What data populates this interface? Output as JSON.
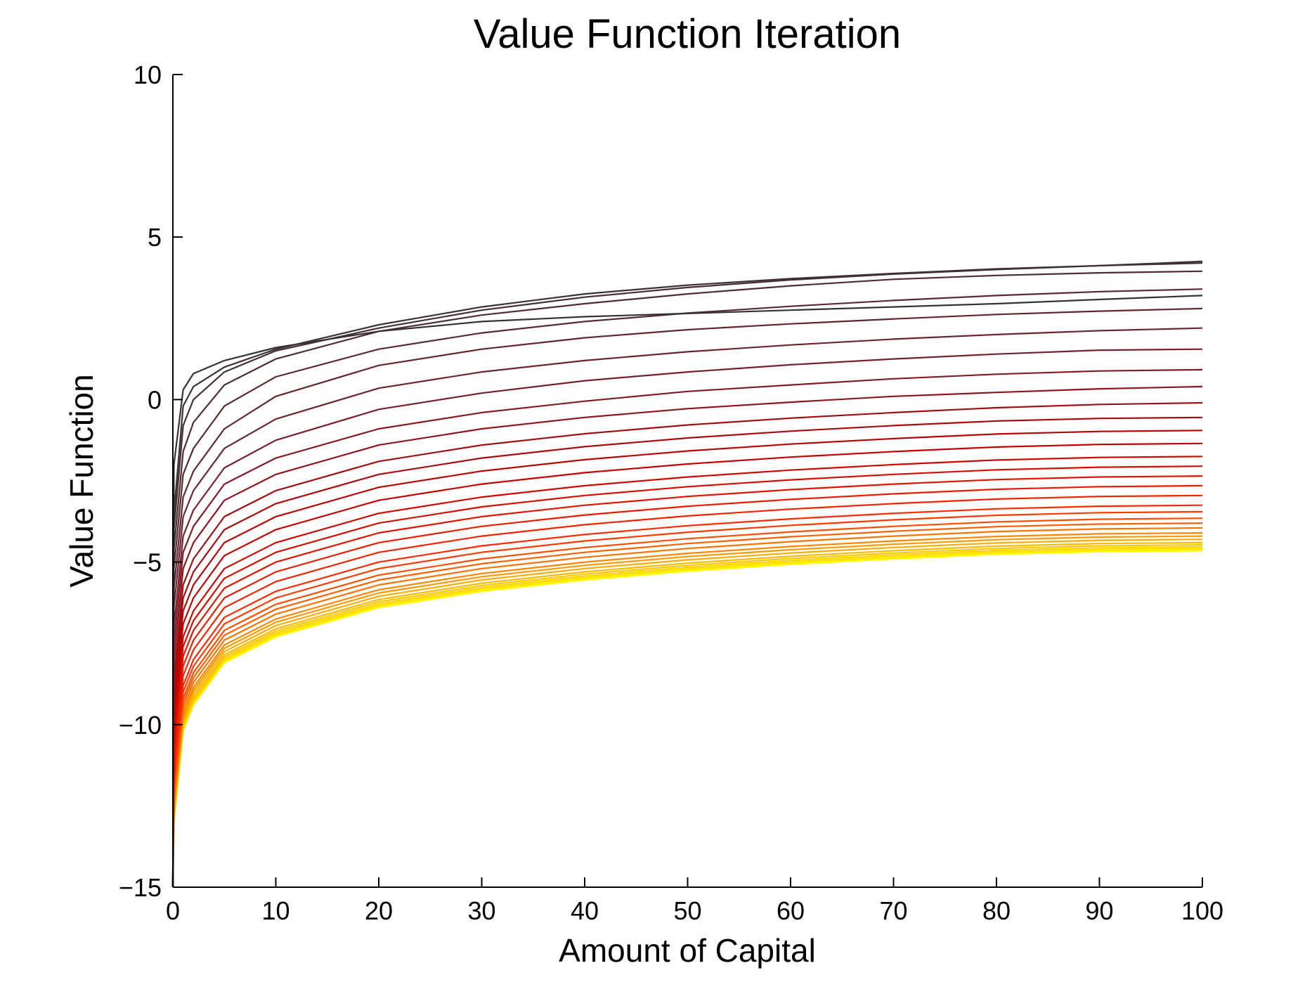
{
  "chart_data": {
    "type": "line",
    "title": "Value Function Iteration",
    "xlabel": "Amount of Capital",
    "ylabel": "Value Function",
    "xlim": [
      0,
      100
    ],
    "ylim": [
      -15,
      10
    ],
    "xticks": [
      0,
      10,
      20,
      30,
      40,
      50,
      60,
      70,
      80,
      90,
      100
    ],
    "yticks": [
      -15,
      -10,
      -5,
      0,
      5,
      10
    ],
    "xtick_labels": [
      "0",
      "10",
      "20",
      "30",
      "40",
      "50",
      "60",
      "70",
      "80",
      "90",
      "100"
    ],
    "ytick_labels": [
      "−15",
      "−10",
      "−5",
      "0",
      "5",
      "10"
    ],
    "grid": false,
    "colormap": [
      "#333333",
      "#6e2430",
      "#c00000",
      "#ff2a00",
      "#ffa500",
      "#ffff00"
    ],
    "x": [
      0.1,
      1,
      2,
      5,
      10,
      20,
      30,
      40,
      50,
      60,
      70,
      80,
      90,
      100
    ],
    "series": [
      {
        "values": [
          -2.0,
          0.3,
          0.8,
          1.2,
          1.6,
          2.1,
          2.4,
          2.55,
          2.65,
          2.75,
          2.85,
          2.95,
          3.08,
          3.2
        ]
      },
      {
        "values": [
          -3.5,
          -0.2,
          0.4,
          1.0,
          1.55,
          2.3,
          2.85,
          3.25,
          3.52,
          3.72,
          3.88,
          4.02,
          4.12,
          4.2
        ]
      },
      {
        "values": [
          -4.0,
          -0.8,
          0.0,
          0.85,
          1.5,
          2.2,
          2.75,
          3.15,
          3.45,
          3.68,
          3.86,
          4.0,
          4.12,
          4.25
        ]
      },
      {
        "values": [
          -4.6,
          -1.6,
          -0.7,
          0.45,
          1.25,
          2.1,
          2.6,
          2.95,
          3.25,
          3.5,
          3.7,
          3.82,
          3.9,
          3.95
        ]
      },
      {
        "values": [
          -5.2,
          -2.3,
          -1.5,
          -0.2,
          0.7,
          1.55,
          2.05,
          2.4,
          2.66,
          2.87,
          3.05,
          3.2,
          3.32,
          3.4
        ]
      },
      {
        "values": [
          -5.8,
          -3.0,
          -2.2,
          -0.9,
          0.1,
          1.05,
          1.55,
          1.9,
          2.15,
          2.33,
          2.48,
          2.62,
          2.72,
          2.8
        ]
      },
      {
        "values": [
          -6.4,
          -3.6,
          -2.8,
          -1.5,
          -0.6,
          0.35,
          0.85,
          1.2,
          1.47,
          1.68,
          1.86,
          2.0,
          2.12,
          2.2
        ]
      },
      {
        "values": [
          -7.0,
          -4.2,
          -3.4,
          -2.1,
          -1.25,
          -0.3,
          0.2,
          0.58,
          0.85,
          1.07,
          1.25,
          1.4,
          1.52,
          1.55
        ]
      },
      {
        "values": [
          -7.5,
          -4.7,
          -3.9,
          -2.6,
          -1.8,
          -0.9,
          -0.4,
          -0.05,
          0.25,
          0.45,
          0.64,
          0.78,
          0.88,
          0.92
        ]
      },
      {
        "values": [
          -8.0,
          -5.2,
          -4.4,
          -3.1,
          -2.3,
          -1.4,
          -0.9,
          -0.55,
          -0.28,
          -0.08,
          0.1,
          0.22,
          0.33,
          0.4
        ]
      },
      {
        "values": [
          -8.5,
          -5.7,
          -4.9,
          -3.6,
          -2.8,
          -1.9,
          -1.4,
          -1.05,
          -0.78,
          -0.57,
          -0.4,
          -0.25,
          -0.15,
          -0.1
        ]
      },
      {
        "values": [
          -8.9,
          -6.1,
          -5.3,
          -4.0,
          -3.2,
          -2.3,
          -1.8,
          -1.45,
          -1.18,
          -0.97,
          -0.8,
          -0.66,
          -0.58,
          -0.55
        ]
      },
      {
        "values": [
          -9.3,
          -6.5,
          -5.7,
          -4.4,
          -3.6,
          -2.7,
          -2.2,
          -1.85,
          -1.58,
          -1.37,
          -1.2,
          -1.06,
          -0.98,
          -0.95
        ]
      },
      {
        "values": [
          -9.7,
          -6.9,
          -6.1,
          -4.8,
          -4.0,
          -3.1,
          -2.6,
          -2.25,
          -1.98,
          -1.77,
          -1.6,
          -1.46,
          -1.38,
          -1.35
        ]
      },
      {
        "values": [
          -10.1,
          -7.3,
          -6.5,
          -5.2,
          -4.4,
          -3.5,
          -3.0,
          -2.65,
          -2.38,
          -2.17,
          -2.0,
          -1.86,
          -1.78,
          -1.75
        ]
      },
      {
        "values": [
          -10.4,
          -7.6,
          -6.8,
          -5.5,
          -4.7,
          -3.8,
          -3.3,
          -2.95,
          -2.68,
          -2.47,
          -2.3,
          -2.16,
          -2.08,
          -2.05
        ]
      },
      {
        "values": [
          -10.7,
          -7.9,
          -7.1,
          -5.8,
          -5.0,
          -4.1,
          -3.6,
          -3.25,
          -2.98,
          -2.77,
          -2.6,
          -2.46,
          -2.38,
          -2.35
        ]
      },
      {
        "values": [
          -11.0,
          -8.2,
          -7.4,
          -6.1,
          -5.3,
          -4.4,
          -3.9,
          -3.55,
          -3.28,
          -3.07,
          -2.9,
          -2.76,
          -2.68,
          -2.65
        ]
      },
      {
        "values": [
          -11.3,
          -8.5,
          -7.7,
          -6.4,
          -5.6,
          -4.7,
          -4.2,
          -3.85,
          -3.58,
          -3.37,
          -3.2,
          -3.06,
          -2.98,
          -2.95
        ]
      },
      {
        "values": [
          -11.6,
          -8.8,
          -8.0,
          -6.7,
          -5.9,
          -5.0,
          -4.5,
          -4.15,
          -3.88,
          -3.67,
          -3.5,
          -3.36,
          -3.28,
          -3.25
        ]
      },
      {
        "values": [
          -11.8,
          -9.0,
          -8.2,
          -6.9,
          -6.1,
          -5.2,
          -4.7,
          -4.35,
          -4.08,
          -3.87,
          -3.7,
          -3.56,
          -3.48,
          -3.45
        ]
      },
      {
        "values": [
          -12.0,
          -9.2,
          -8.4,
          -7.1,
          -6.3,
          -5.4,
          -4.9,
          -4.55,
          -4.28,
          -4.07,
          -3.9,
          -3.76,
          -3.68,
          -3.65
        ]
      },
      {
        "values": [
          -12.15,
          -9.35,
          -8.55,
          -7.25,
          -6.45,
          -5.55,
          -5.05,
          -4.7,
          -4.43,
          -4.22,
          -4.05,
          -3.91,
          -3.83,
          -3.8
        ]
      },
      {
        "values": [
          -12.3,
          -9.5,
          -8.7,
          -7.4,
          -6.6,
          -5.7,
          -5.2,
          -4.85,
          -4.58,
          -4.37,
          -4.2,
          -4.06,
          -3.98,
          -3.95
        ]
      },
      {
        "values": [
          -12.45,
          -9.65,
          -8.85,
          -7.55,
          -6.75,
          -5.85,
          -5.35,
          -5.0,
          -4.73,
          -4.52,
          -4.35,
          -4.21,
          -4.13,
          -4.1
        ]
      },
      {
        "values": [
          -12.55,
          -9.75,
          -8.95,
          -7.65,
          -6.85,
          -5.95,
          -5.45,
          -5.1,
          -4.83,
          -4.62,
          -4.45,
          -4.31,
          -4.23,
          -4.2
        ]
      },
      {
        "values": [
          -12.65,
          -9.85,
          -9.05,
          -7.75,
          -6.95,
          -6.05,
          -5.55,
          -5.2,
          -4.93,
          -4.72,
          -4.55,
          -4.41,
          -4.33,
          -4.3
        ]
      },
      {
        "values": [
          -12.75,
          -9.95,
          -9.15,
          -7.85,
          -7.05,
          -6.15,
          -5.65,
          -5.3,
          -5.03,
          -4.82,
          -4.65,
          -4.51,
          -4.43,
          -4.4
        ]
      },
      {
        "values": [
          -12.82,
          -10.02,
          -9.22,
          -7.92,
          -7.12,
          -6.22,
          -5.72,
          -5.37,
          -5.1,
          -4.89,
          -4.72,
          -4.58,
          -4.5,
          -4.47
        ]
      },
      {
        "values": [
          -12.88,
          -10.08,
          -9.28,
          -7.98,
          -7.18,
          -6.28,
          -5.78,
          -5.43,
          -5.16,
          -4.95,
          -4.78,
          -4.64,
          -4.56,
          -4.53
        ]
      },
      {
        "values": [
          -12.93,
          -10.13,
          -9.33,
          -8.03,
          -7.23,
          -6.33,
          -5.83,
          -5.48,
          -5.21,
          -5.0,
          -4.83,
          -4.69,
          -4.61,
          -4.58
        ]
      },
      {
        "values": [
          -12.97,
          -10.17,
          -9.37,
          -8.07,
          -7.27,
          -6.37,
          -5.87,
          -5.52,
          -5.25,
          -5.04,
          -4.87,
          -4.73,
          -4.65,
          -4.62
        ]
      },
      {
        "values": [
          -13.0,
          -10.2,
          -9.4,
          -8.1,
          -7.3,
          -6.4,
          -5.9,
          -5.55,
          -5.28,
          -5.07,
          -4.9,
          -4.76,
          -4.68,
          -4.65
        ]
      }
    ]
  }
}
